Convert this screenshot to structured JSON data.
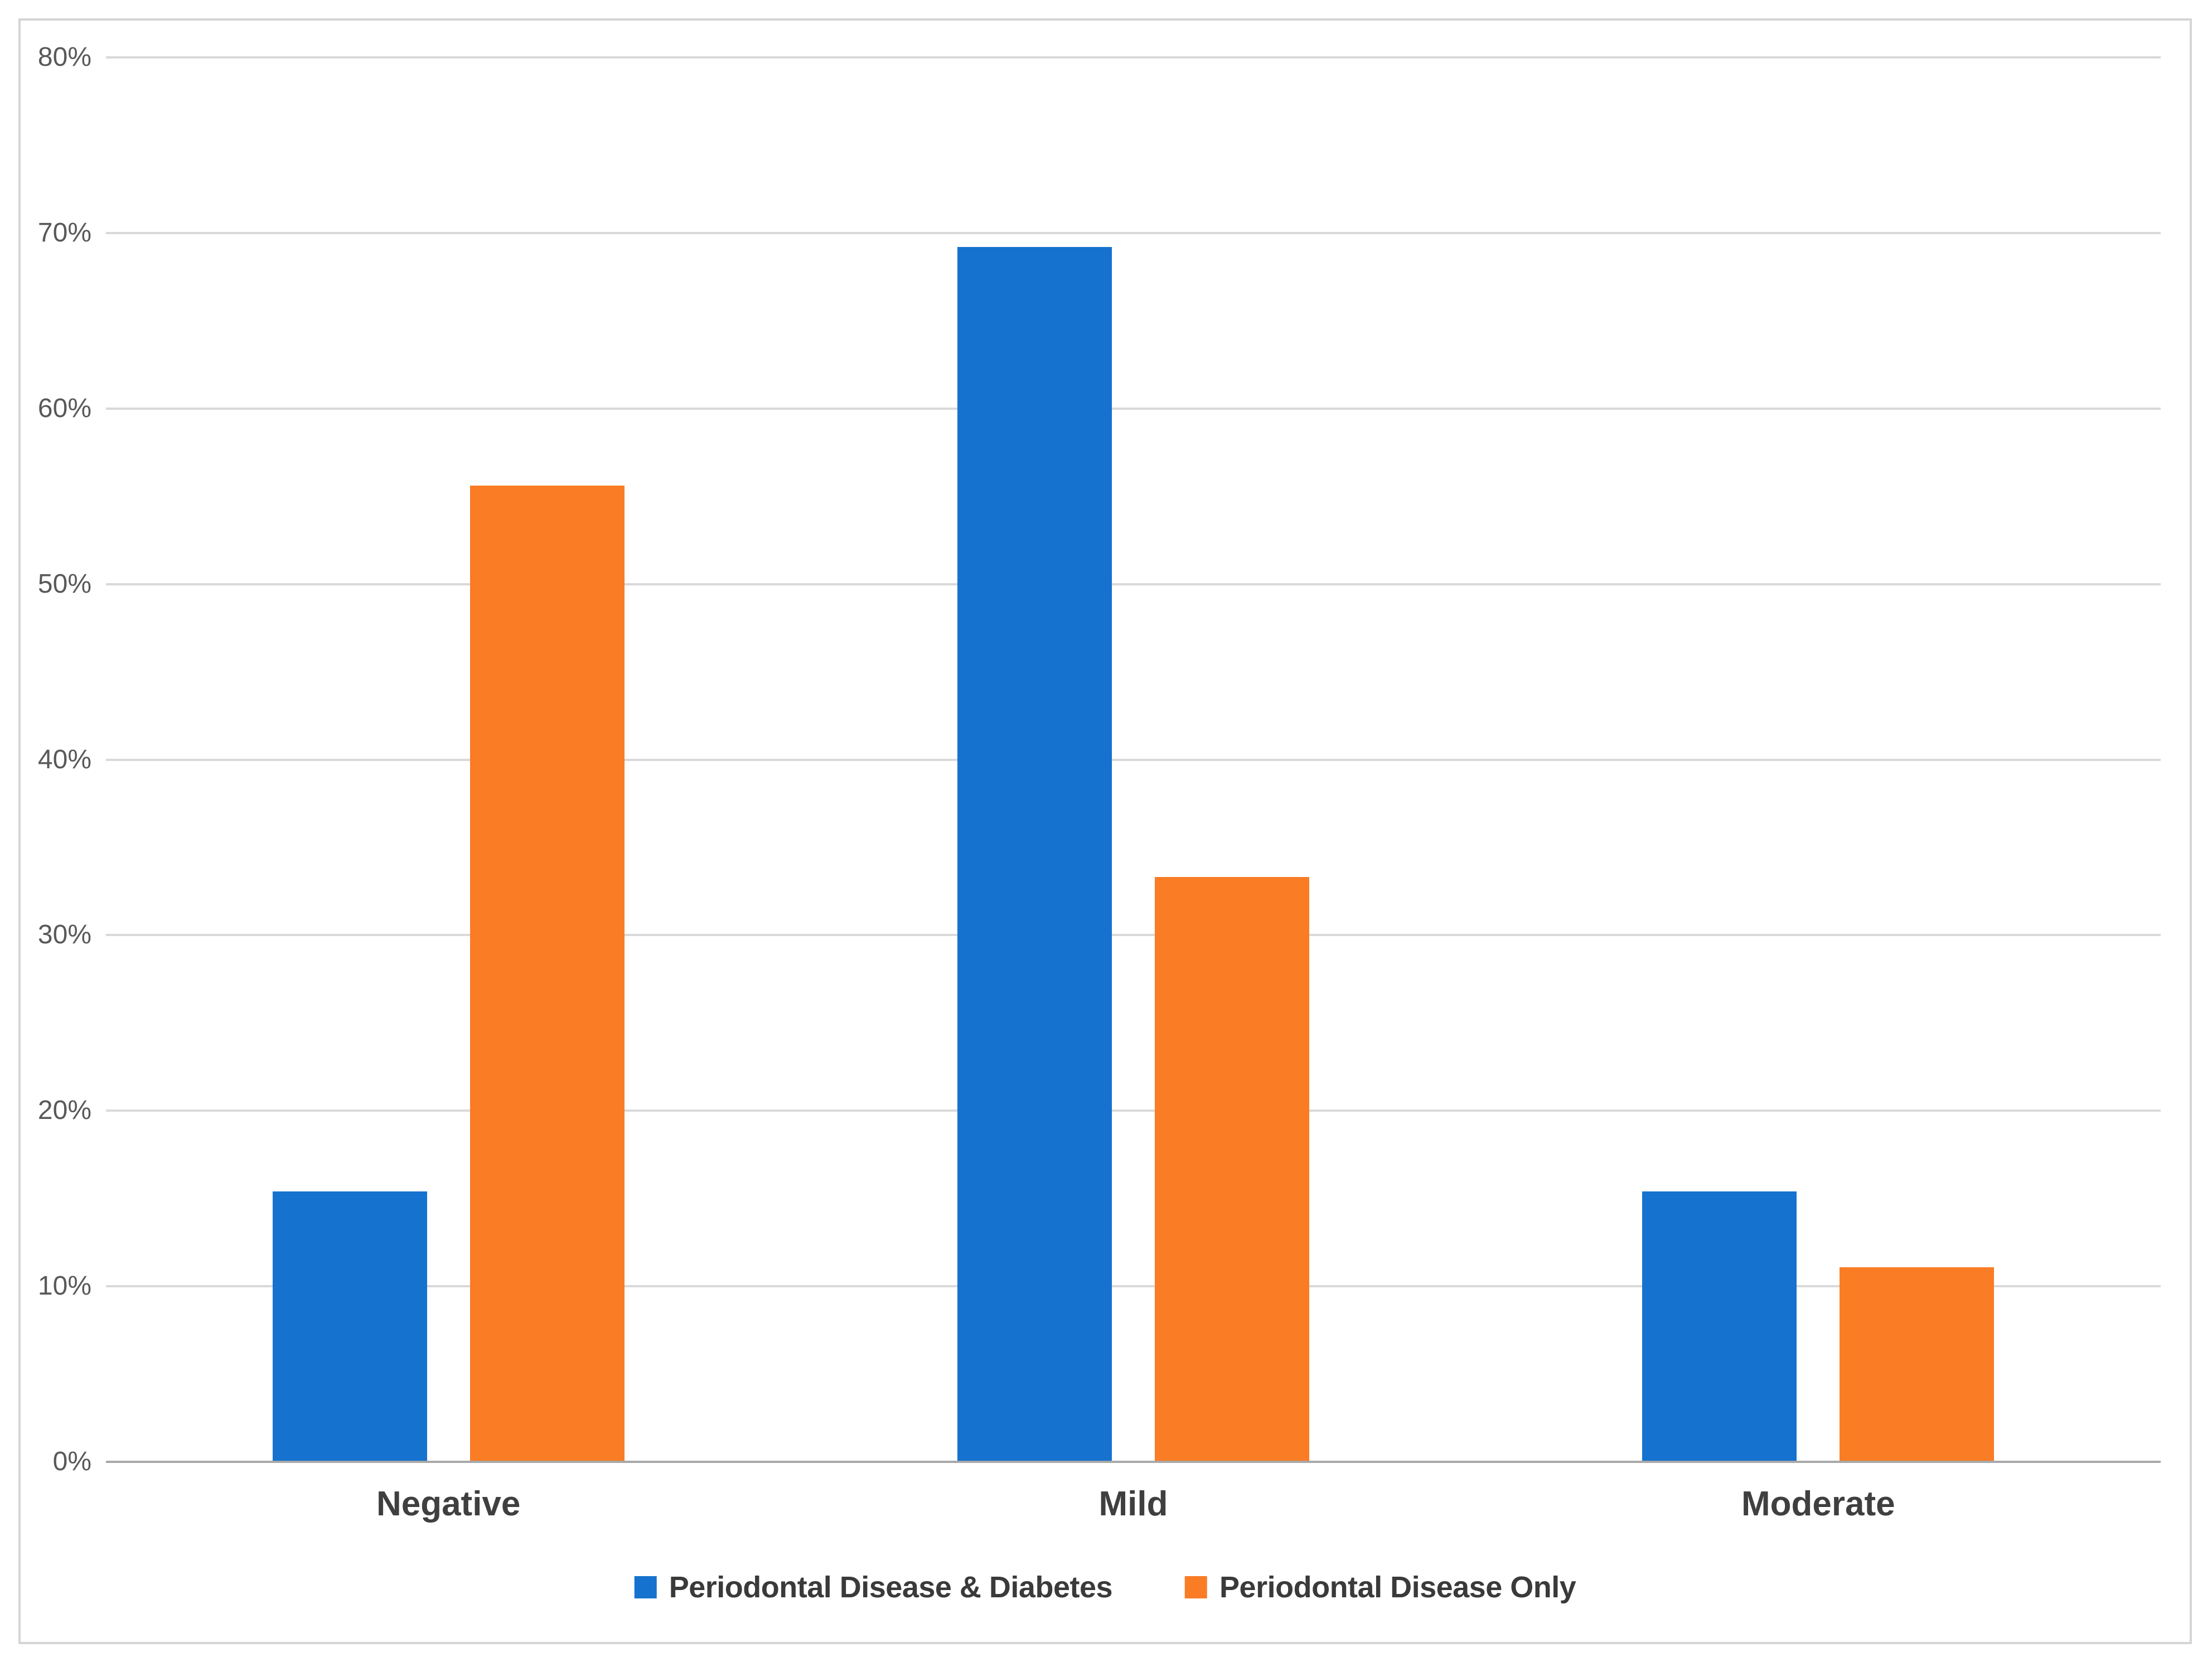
{
  "chart_data": {
    "type": "bar",
    "title": "",
    "xlabel": "",
    "ylabel": "",
    "categories": [
      "Negative",
      "Mild",
      "Moderate"
    ],
    "series": [
      {
        "name": "Periodontal Disease & Diabetes",
        "color": "#1572ce",
        "values": [
          15.4,
          69.2,
          15.4
        ]
      },
      {
        "name": "Periodontal Disease Only",
        "color": "#fa7c25",
        "values": [
          55.6,
          33.3,
          11.1
        ]
      }
    ],
    "value_unit": "%",
    "ylim": [
      0,
      80
    ],
    "ytick_step": 10,
    "ytick_labels": [
      "0%",
      "10%",
      "20%",
      "30%",
      "40%",
      "50%",
      "60%",
      "70%",
      "80%"
    ],
    "grid": true,
    "legend_position": "bottom"
  },
  "colors": {
    "series_blue": "#1572ce",
    "series_orange": "#fa7c25",
    "gridline": "#d9d9d9",
    "axis_line": "#a8a8a8",
    "tick_text": "#595959",
    "category_text": "#3f3f3f",
    "legend_text": "#3a3a3a",
    "frame_border": "#d6d4d4",
    "background": "#ffffff"
  }
}
